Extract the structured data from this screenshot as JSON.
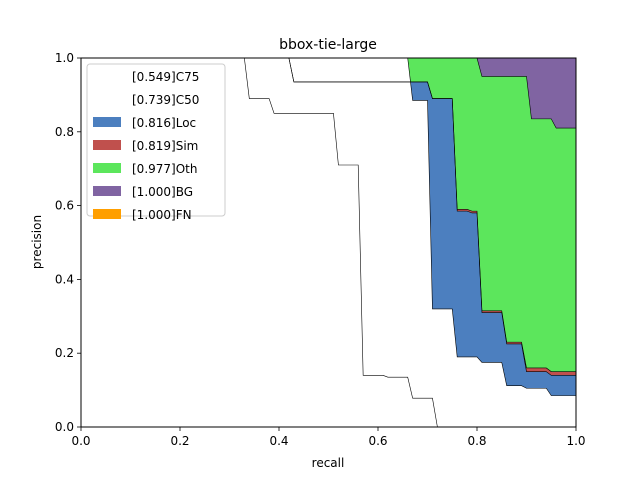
{
  "chart_data": {
    "type": "area",
    "title": "bbox-tie-large",
    "xlabel": "recall",
    "ylabel": "precision",
    "xlim": [
      0,
      1
    ],
    "ylim": [
      0,
      1
    ],
    "x_ticks": [
      "0.0",
      "0.2",
      "0.4",
      "0.6",
      "0.8",
      "1.0"
    ],
    "y_ticks": [
      "0.0",
      "0.2",
      "0.4",
      "0.6",
      "0.8",
      "1.0"
    ],
    "grid": false,
    "legend_position": "top-left",
    "series": [
      {
        "name": "[0.549]C75",
        "color": "#ffffff",
        "points": [
          [
            0,
            1
          ],
          [
            0.33,
            1
          ],
          [
            0.34,
            0.89
          ],
          [
            0.38,
            0.89
          ],
          [
            0.39,
            0.85
          ],
          [
            0.51,
            0.85
          ],
          [
            0.52,
            0.71
          ],
          [
            0.56,
            0.71
          ],
          [
            0.57,
            0.14
          ],
          [
            0.61,
            0.14
          ],
          [
            0.62,
            0.135
          ],
          [
            0.66,
            0.135
          ],
          [
            0.67,
            0.078
          ],
          [
            0.71,
            0.078
          ],
          [
            0.72,
            0
          ],
          [
            1,
            0
          ]
        ]
      },
      {
        "name": "[0.739]C50",
        "color": "#ffffff",
        "points": [
          [
            0,
            1
          ],
          [
            0.66,
            1
          ],
          [
            0.67,
            0.885
          ],
          [
            0.7,
            0.885
          ],
          [
            0.71,
            0.32
          ],
          [
            0.75,
            0.32
          ],
          [
            0.76,
            0.19
          ],
          [
            0.8,
            0.19
          ],
          [
            0.81,
            0.175
          ],
          [
            0.85,
            0.175
          ],
          [
            0.86,
            0.112
          ],
          [
            0.89,
            0.112
          ],
          [
            0.9,
            0.105
          ],
          [
            0.94,
            0.105
          ],
          [
            0.95,
            0.085
          ],
          [
            1,
            0.085
          ]
        ]
      },
      {
        "name": "[0.816]Loc",
        "color": "#4c7fbf",
        "points": [
          [
            0,
            1
          ],
          [
            0.42,
            1
          ],
          [
            0.43,
            0.935
          ],
          [
            0.65,
            0.935
          ],
          [
            0.66,
            0.935
          ],
          [
            0.7,
            0.935
          ],
          [
            0.71,
            0.89
          ],
          [
            0.75,
            0.89
          ],
          [
            0.76,
            0.585
          ],
          [
            0.78,
            0.585
          ],
          [
            0.79,
            0.58
          ],
          [
            0.8,
            0.58
          ],
          [
            0.81,
            0.31
          ],
          [
            0.85,
            0.31
          ],
          [
            0.86,
            0.225
          ],
          [
            0.89,
            0.225
          ],
          [
            0.9,
            0.15
          ],
          [
            0.94,
            0.15
          ],
          [
            0.95,
            0.14
          ],
          [
            1,
            0.14
          ]
        ]
      },
      {
        "name": "[0.819]Sim",
        "color": "#c0504d",
        "points": [
          [
            0,
            1
          ],
          [
            0.42,
            1
          ],
          [
            0.43,
            0.935
          ],
          [
            0.65,
            0.935
          ],
          [
            0.66,
            0.935
          ],
          [
            0.7,
            0.935
          ],
          [
            0.71,
            0.89
          ],
          [
            0.75,
            0.89
          ],
          [
            0.76,
            0.59
          ],
          [
            0.78,
            0.59
          ],
          [
            0.79,
            0.585
          ],
          [
            0.8,
            0.585
          ],
          [
            0.81,
            0.315
          ],
          [
            0.85,
            0.315
          ],
          [
            0.86,
            0.23
          ],
          [
            0.89,
            0.23
          ],
          [
            0.9,
            0.16
          ],
          [
            0.94,
            0.16
          ],
          [
            0.95,
            0.15
          ],
          [
            1,
            0.15
          ]
        ]
      },
      {
        "name": "[0.977]Oth",
        "color": "#5ce65c",
        "points": [
          [
            0,
            1
          ],
          [
            0.8,
            1
          ],
          [
            0.81,
            0.95
          ],
          [
            0.9,
            0.95
          ],
          [
            0.91,
            0.835
          ],
          [
            0.95,
            0.835
          ],
          [
            0.96,
            0.81
          ],
          [
            1,
            0.81
          ]
        ]
      },
      {
        "name": "[1.000]BG",
        "color": "#8064a2",
        "points": [
          [
            0,
            1
          ],
          [
            1,
            1
          ]
        ]
      },
      {
        "name": "[1.000]FN",
        "color": "#ff9f00",
        "points": [
          [
            0,
            1
          ],
          [
            1,
            1
          ]
        ]
      }
    ]
  }
}
